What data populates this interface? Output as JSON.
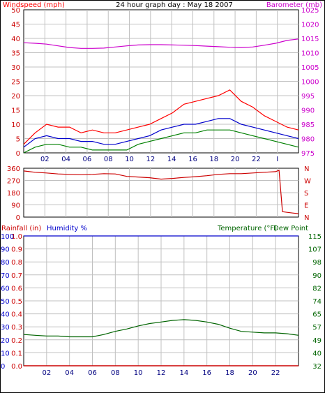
{
  "header": {
    "left_label": "Windspeed (mph)",
    "title": "24 hour graph day : May 18 2007",
    "right_label": "Barometer (mb)"
  },
  "lower_header": {
    "rainfall": "Rainfall (in)",
    "humidity": "Humidity %",
    "temperature": "Temperature (°F)",
    "dewpoint": "Dew Point"
  },
  "colors": {
    "windspeed": "#ff0000",
    "gust": "#ff0000",
    "avg_wind": "#0000cc",
    "min_wind": "#008000",
    "barometer": "#cc00cc",
    "direction": "#cc0000",
    "humidity": "#0000cc",
    "temperature": "#006400",
    "rainfall": "#cc0000",
    "grid": "#c0c0c0"
  },
  "chart_data": [
    {
      "id": "wind",
      "type": "line",
      "xlabel": "",
      "x_ticks": [
        "02",
        "04",
        "06",
        "08",
        "10",
        "12",
        "14",
        "16",
        "18",
        "20",
        "22",
        "I"
      ],
      "y_left_ticks": [
        "0",
        "5",
        "10",
        "15",
        "20",
        "25",
        "30",
        "35",
        "40",
        "45",
        "50"
      ],
      "y_right_ticks": [
        "975",
        "980",
        "985",
        "990",
        "995",
        "1000",
        "1005",
        "1010",
        "1015",
        "1020",
        "1025"
      ],
      "ylim_left": [
        0,
        50
      ],
      "ylim_right": [
        975,
        1025
      ],
      "x": [
        0,
        1,
        2,
        3,
        4,
        5,
        6,
        7,
        8,
        9,
        10,
        11,
        12,
        13,
        14,
        15,
        16,
        17,
        18,
        19,
        20,
        21,
        22,
        23,
        24
      ],
      "series": [
        {
          "role": "gust",
          "values": [
            3,
            7,
            10,
            9,
            9,
            7,
            8,
            7,
            7,
            8,
            9,
            10,
            12,
            14,
            17,
            18,
            19,
            20,
            22,
            18,
            16,
            13,
            11,
            9,
            8
          ]
        },
        {
          "role": "average",
          "values": [
            2,
            5,
            6,
            5,
            5,
            4,
            4,
            3,
            3,
            4,
            5,
            6,
            8,
            9,
            10,
            10,
            11,
            12,
            12,
            10,
            9,
            8,
            7,
            6,
            5
          ]
        },
        {
          "role": "minimum",
          "values": [
            0,
            2,
            3,
            3,
            2,
            2,
            1,
            1,
            1,
            1,
            3,
            4,
            5,
            6,
            7,
            7,
            8,
            8,
            8,
            7,
            6,
            5,
            4,
            3,
            2
          ]
        },
        {
          "role": "barometer",
          "values": [
            1013.5,
            1013.3,
            1013,
            1012.4,
            1011.8,
            1011.5,
            1011.5,
            1011.6,
            1012,
            1012.4,
            1012.7,
            1012.8,
            1012.8,
            1012.7,
            1012.6,
            1012.5,
            1012.3,
            1012.1,
            1011.9,
            1011.8,
            1012,
            1012.6,
            1013.3,
            1014.3,
            1014.8
          ]
        }
      ]
    },
    {
      "id": "direction",
      "type": "line",
      "x_ticks": [],
      "y_left_ticks": [
        "0",
        "90",
        "180",
        "270",
        "360"
      ],
      "y_right_ticks": [
        "N",
        "E",
        "S",
        "W",
        "N"
      ],
      "ylim": [
        0,
        360
      ],
      "x": [
        0,
        1,
        2,
        3,
        4,
        5,
        6,
        7,
        8,
        9,
        10,
        11,
        12,
        13,
        14,
        15,
        16,
        17,
        18,
        19,
        20,
        21,
        22,
        22.3,
        22.6,
        23,
        23.5,
        24
      ],
      "series": [
        {
          "role": "direction",
          "values": [
            340,
            330,
            325,
            318,
            315,
            312,
            315,
            320,
            318,
            300,
            295,
            290,
            280,
            285,
            292,
            298,
            305,
            315,
            320,
            320,
            325,
            330,
            335,
            345,
            40,
            35,
            30,
            25
          ]
        }
      ]
    },
    {
      "id": "temp_humidity",
      "type": "line",
      "x_ticks": [
        "02",
        "04",
        "06",
        "08",
        "10",
        "12",
        "14",
        "16",
        "18",
        "20",
        "22"
      ],
      "rain_ticks": [
        "0.0",
        "0.1",
        "0.2",
        "0.3",
        "0.4",
        "0.5",
        "0.6",
        "0.7",
        "0.8",
        "0.9",
        "1.0"
      ],
      "humidity_ticks": [
        "0",
        "10",
        "20",
        "30",
        "40",
        "50",
        "60",
        "70",
        "80",
        "90",
        "100"
      ],
      "temperature_ticks": [
        "32",
        "40",
        "49",
        "57",
        "65",
        "74",
        "82",
        "90",
        "98",
        "107",
        "115"
      ],
      "ylim_humidity": [
        0,
        100
      ],
      "x": [
        0,
        1,
        2,
        3,
        4,
        5,
        6,
        7,
        8,
        9,
        10,
        11,
        12,
        13,
        14,
        15,
        16,
        17,
        18,
        19,
        20,
        21,
        22,
        23,
        24
      ],
      "series": [
        {
          "role": "humidity",
          "values": [
            100,
            100,
            100,
            100,
            100,
            100,
            100,
            100,
            100,
            100,
            100,
            100,
            100,
            100,
            100,
            100,
            100,
            100,
            100,
            100,
            100,
            100,
            100,
            100,
            100
          ]
        },
        {
          "role": "temperature",
          "values": [
            52,
            51.5,
            51,
            51,
            50.5,
            50.5,
            50.5,
            52,
            54,
            55.5,
            57.5,
            59,
            60,
            61,
            61.5,
            61,
            60,
            58.5,
            56,
            54,
            53.5,
            53,
            53,
            52.5,
            51.5
          ]
        },
        {
          "role": "rainfall",
          "values": [
            0,
            0,
            0,
            0,
            0,
            0,
            0,
            0,
            0,
            0,
            0,
            0,
            0,
            0,
            0,
            0,
            0,
            0,
            0,
            0,
            0,
            0,
            0,
            0,
            0
          ]
        }
      ]
    }
  ]
}
